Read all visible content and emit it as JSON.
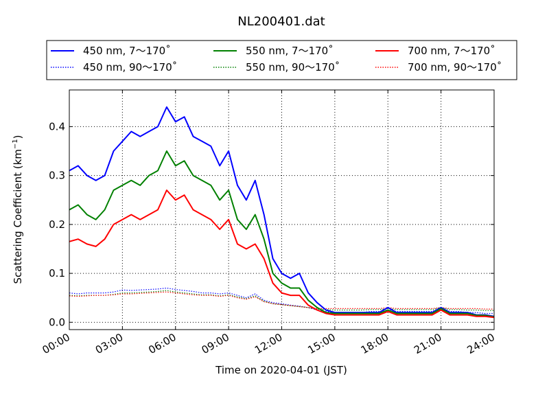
{
  "chart_data": {
    "type": "line",
    "title": "NL200401.dat",
    "xlabel": "Time on 2020-04-01 (JST)",
    "ylabel": "Scattering Coefficient (km",
    "ylabel_exponent": "−1",
    "ylabel_suffix": ")",
    "xlim": [
      0,
      24
    ],
    "ylim": [
      -0.015,
      0.475
    ],
    "x_ticks": [
      0,
      3,
      6,
      9,
      12,
      15,
      18,
      21,
      24
    ],
    "x_tick_labels": [
      "00:00",
      "03:00",
      "06:00",
      "09:00",
      "12:00",
      "15:00",
      "18:00",
      "21:00",
      "24:00"
    ],
    "y_ticks": [
      0.0,
      0.1,
      0.2,
      0.3,
      0.4
    ],
    "y_tick_labels": [
      "0.0",
      "0.1",
      "0.2",
      "0.3",
      "0.4"
    ],
    "grid": true,
    "legend_position": "top",
    "legend_columns": 3,
    "x": [
      0,
      0.5,
      1,
      1.5,
      2,
      2.5,
      3,
      3.5,
      4,
      4.5,
      5,
      5.5,
      6,
      6.5,
      7,
      7.5,
      8,
      8.5,
      9,
      9.5,
      10,
      10.5,
      11,
      11.5,
      12,
      12.5,
      13,
      13.5,
      14,
      14.5,
      15,
      15.5,
      16,
      16.5,
      17,
      17.5,
      18,
      18.5,
      19,
      19.5,
      20,
      20.5,
      21,
      21.5,
      22,
      22.5,
      23,
      23.5,
      24
    ],
    "series": [
      {
        "name": "450 nm, 7～170˚",
        "color": "#0000ff",
        "style": "solid",
        "values": [
          0.31,
          0.32,
          0.3,
          0.29,
          0.3,
          0.35,
          0.37,
          0.39,
          0.38,
          0.39,
          0.4,
          0.44,
          0.41,
          0.42,
          0.38,
          0.37,
          0.36,
          0.32,
          0.35,
          0.28,
          0.25,
          0.29,
          0.22,
          0.13,
          0.1,
          0.09,
          0.1,
          0.06,
          0.04,
          0.025,
          0.02,
          0.02,
          0.02,
          0.02,
          0.02,
          0.02,
          0.03,
          0.02,
          0.02,
          0.02,
          0.02,
          0.02,
          0.03,
          0.02,
          0.02,
          0.02,
          0.015,
          0.015,
          0.012
        ]
      },
      {
        "name": "450 nm, 90～170˚",
        "color": "#0000ff",
        "style": "dotted",
        "values": [
          0.06,
          0.058,
          0.06,
          0.06,
          0.06,
          0.062,
          0.066,
          0.065,
          0.066,
          0.067,
          0.068,
          0.07,
          0.067,
          0.065,
          0.063,
          0.06,
          0.06,
          0.058,
          0.06,
          0.055,
          0.05,
          0.058,
          0.045,
          0.04,
          0.038,
          0.035,
          0.033,
          0.03,
          0.025,
          0.022,
          0.02,
          0.02,
          0.02,
          0.02,
          0.022,
          0.022,
          0.025,
          0.022,
          0.022,
          0.022,
          0.022,
          0.022,
          0.03,
          0.022,
          0.022,
          0.02,
          0.02,
          0.018,
          0.018
        ]
      },
      {
        "name": "550 nm, 7～170˚",
        "color": "#008000",
        "style": "solid",
        "values": [
          0.23,
          0.24,
          0.22,
          0.21,
          0.23,
          0.27,
          0.28,
          0.29,
          0.28,
          0.3,
          0.31,
          0.35,
          0.32,
          0.33,
          0.3,
          0.29,
          0.28,
          0.25,
          0.27,
          0.21,
          0.19,
          0.22,
          0.17,
          0.1,
          0.08,
          0.07,
          0.07,
          0.045,
          0.03,
          0.02,
          0.018,
          0.018,
          0.018,
          0.018,
          0.018,
          0.018,
          0.025,
          0.018,
          0.018,
          0.018,
          0.018,
          0.018,
          0.028,
          0.018,
          0.018,
          0.018,
          0.014,
          0.014,
          0.011
        ]
      },
      {
        "name": "550 nm, 90～170˚",
        "color": "#008000",
        "style": "dotted",
        "values": [
          0.055,
          0.054,
          0.055,
          0.055,
          0.055,
          0.057,
          0.06,
          0.06,
          0.061,
          0.062,
          0.063,
          0.065,
          0.062,
          0.06,
          0.058,
          0.056,
          0.056,
          0.054,
          0.056,
          0.052,
          0.048,
          0.054,
          0.043,
          0.038,
          0.036,
          0.034,
          0.032,
          0.03,
          0.027,
          0.026,
          0.025,
          0.025,
          0.025,
          0.025,
          0.026,
          0.026,
          0.028,
          0.026,
          0.026,
          0.026,
          0.026,
          0.026,
          0.03,
          0.026,
          0.026,
          0.025,
          0.025,
          0.024,
          0.024
        ]
      },
      {
        "name": "700 nm, 7～170˚",
        "color": "#ff0000",
        "style": "solid",
        "values": [
          0.165,
          0.17,
          0.16,
          0.155,
          0.17,
          0.2,
          0.21,
          0.22,
          0.21,
          0.22,
          0.23,
          0.27,
          0.25,
          0.26,
          0.23,
          0.22,
          0.21,
          0.19,
          0.21,
          0.16,
          0.15,
          0.16,
          0.13,
          0.08,
          0.06,
          0.055,
          0.055,
          0.035,
          0.025,
          0.018,
          0.015,
          0.015,
          0.015,
          0.015,
          0.015,
          0.015,
          0.022,
          0.015,
          0.015,
          0.015,
          0.015,
          0.015,
          0.025,
          0.015,
          0.015,
          0.015,
          0.012,
          0.012,
          0.01
        ]
      },
      {
        "name": "700 nm, 90～170˚",
        "color": "#ff0000",
        "style": "dotted",
        "values": [
          0.054,
          0.053,
          0.054,
          0.055,
          0.055,
          0.056,
          0.058,
          0.058,
          0.059,
          0.06,
          0.061,
          0.062,
          0.06,
          0.058,
          0.056,
          0.055,
          0.055,
          0.053,
          0.055,
          0.05,
          0.047,
          0.052,
          0.042,
          0.038,
          0.036,
          0.034,
          0.032,
          0.03,
          0.028,
          0.028,
          0.028,
          0.028,
          0.028,
          0.028,
          0.028,
          0.028,
          0.03,
          0.028,
          0.028,
          0.028,
          0.028,
          0.028,
          0.03,
          0.028,
          0.028,
          0.028,
          0.028,
          0.027,
          0.027
        ]
      }
    ]
  }
}
